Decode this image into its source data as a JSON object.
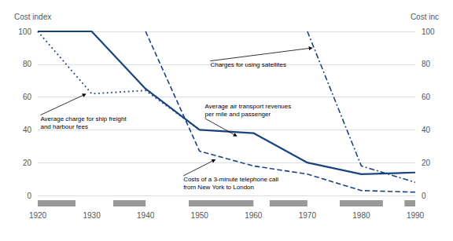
{
  "chart_data": {
    "type": "line",
    "ylabel": "Cost index",
    "y2label": "Cost inc",
    "xlim": [
      1920,
      1990
    ],
    "ylim": [
      0,
      100
    ],
    "y2lim": [
      0,
      100
    ],
    "xticks": [
      1920,
      1930,
      1940,
      1950,
      1960,
      1970,
      1980,
      1990
    ],
    "yticks": [
      0,
      20,
      40,
      60,
      80,
      100
    ],
    "y2ticks": [
      0,
      20,
      40,
      60,
      80,
      100
    ],
    "grid": true,
    "color": "#1a4480",
    "series": [
      {
        "x": [
          1920,
          1930,
          1940,
          1950
        ],
        "values": [
          100,
          62,
          64,
          40
        ],
        "line_style": "dotted"
      },
      {
        "x": [
          1920,
          1930,
          1940,
          1950,
          1960,
          1970,
          1980,
          1990
        ],
        "values": [
          100,
          100,
          65,
          40,
          38,
          20,
          13,
          14
        ],
        "line_style": "solid"
      },
      {
        "x": [
          1940,
          1950,
          1960,
          1970,
          1980,
          1990
        ],
        "values": [
          100,
          27,
          18,
          13,
          3,
          2
        ],
        "line_style": "dashed"
      },
      {
        "x": [
          1970,
          1980,
          1990
        ],
        "values": [
          100,
          18,
          8
        ],
        "line_style": "dashdot"
      }
    ],
    "stripes": [
      [
        1920,
        1927
      ],
      [
        1934,
        1940
      ],
      [
        1948,
        1960
      ],
      [
        1963,
        1970
      ],
      [
        1976,
        1984
      ],
      [
        1988,
        1990
      ]
    ],
    "annotations": [
      {
        "text": "Average charge for ship freight\nand harbour fees",
        "x": 1929,
        "y": 62,
        "text_x": 1920.5,
        "text_y": 49
      },
      {
        "text": "Charges for using satellites",
        "x": 1971,
        "y": 90,
        "text_x": 1952,
        "text_y": 82
      },
      {
        "text": "Average air transport revenues\nper mile and passenger",
        "x": 1957,
        "y": 36,
        "text_x": 1951,
        "text_y": 47
      },
      {
        "text": "Costs of a 3-minute telephone call\nfrom New York to London",
        "x": 1953,
        "y": 22,
        "text_x": 1947,
        "text_y": 12
      }
    ]
  }
}
